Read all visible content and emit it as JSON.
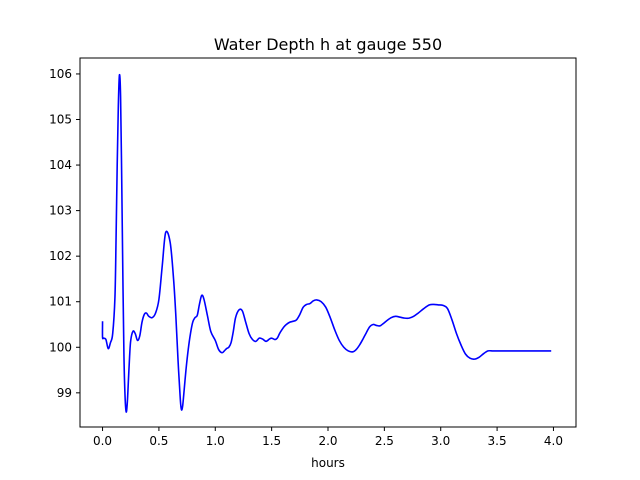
{
  "chart_data": {
    "type": "line",
    "title": "Water Depth h at gauge 550",
    "xlabel": "hours",
    "ylabel": "",
    "xlim": [
      -0.2,
      4.2
    ],
    "ylim": [
      98.25,
      106.35
    ],
    "grid": false,
    "x_ticks": [
      0.0,
      0.5,
      1.0,
      1.5,
      2.0,
      2.5,
      3.0,
      3.5,
      4.0
    ],
    "x_tick_labels": [
      "0.0",
      "0.5",
      "1.0",
      "1.5",
      "2.0",
      "2.5",
      "3.0",
      "3.5",
      "4.0"
    ],
    "y_ticks": [
      99,
      100,
      101,
      102,
      103,
      104,
      105,
      106
    ],
    "y_tick_labels": [
      "99",
      "100",
      "101",
      "102",
      "103",
      "104",
      "105",
      "106"
    ],
    "series": [
      {
        "color": "#0000ff",
        "x": [
          0.0,
          0.0,
          0.01,
          0.03,
          0.05,
          0.07,
          0.09,
          0.11,
          0.12,
          0.13,
          0.14,
          0.15,
          0.16,
          0.17,
          0.18,
          0.19,
          0.2,
          0.21,
          0.22,
          0.23,
          0.24,
          0.25,
          0.27,
          0.29,
          0.31,
          0.33,
          0.35,
          0.37,
          0.39,
          0.41,
          0.44,
          0.47,
          0.5,
          0.53,
          0.56,
          0.6,
          0.63,
          0.65,
          0.67,
          0.69,
          0.7,
          0.71,
          0.72,
          0.74,
          0.76,
          0.78,
          0.8,
          0.82,
          0.84,
          0.86,
          0.88,
          0.9,
          0.93,
          0.96,
          1.0,
          1.03,
          1.06,
          1.08,
          1.1,
          1.12,
          1.14,
          1.16,
          1.18,
          1.21,
          1.24,
          1.27,
          1.3,
          1.33,
          1.36,
          1.39,
          1.42,
          1.45,
          1.48,
          1.5,
          1.53,
          1.55,
          1.57,
          1.59,
          1.61,
          1.63,
          1.66,
          1.69,
          1.72,
          1.75,
          1.78,
          1.81,
          1.84,
          1.87,
          1.9,
          1.94,
          1.98,
          2.02,
          2.06,
          2.1,
          2.14,
          2.18,
          2.22,
          2.25,
          2.28,
          2.31,
          2.34,
          2.37,
          2.4,
          2.43,
          2.46,
          2.49,
          2.52,
          2.56,
          2.6,
          2.64,
          2.68,
          2.72,
          2.76,
          2.8,
          2.85,
          2.9,
          2.94,
          2.98,
          3.02,
          3.06,
          3.1,
          3.14,
          3.18,
          3.22,
          3.26,
          3.3,
          3.34,
          3.38,
          3.42,
          3.46,
          3.5,
          3.54,
          3.58,
          3.62,
          3.66,
          3.7,
          3.74,
          3.78,
          3.82,
          3.86,
          3.9,
          3.94,
          3.98
        ],
        "y": [
          100.57,
          100.22,
          100.2,
          100.17,
          99.97,
          100.1,
          100.3,
          101.1,
          102.4,
          104.0,
          105.3,
          105.98,
          105.5,
          103.7,
          101.6,
          99.8,
          98.9,
          98.58,
          98.8,
          99.3,
          99.8,
          100.15,
          100.35,
          100.3,
          100.15,
          100.25,
          100.55,
          100.72,
          100.75,
          100.68,
          100.65,
          100.75,
          101.05,
          101.8,
          102.52,
          102.3,
          101.5,
          100.7,
          99.7,
          98.85,
          98.63,
          98.7,
          98.95,
          99.5,
          99.95,
          100.3,
          100.55,
          100.65,
          100.7,
          100.95,
          101.14,
          101.05,
          100.7,
          100.35,
          100.15,
          99.95,
          99.88,
          99.92,
          99.97,
          100.0,
          100.1,
          100.35,
          100.65,
          100.82,
          100.8,
          100.55,
          100.3,
          100.17,
          100.13,
          100.2,
          100.18,
          100.13,
          100.18,
          100.2,
          100.17,
          100.2,
          100.3,
          100.38,
          100.45,
          100.5,
          100.55,
          100.57,
          100.6,
          100.72,
          100.88,
          100.94,
          100.96,
          101.02,
          101.04,
          101.0,
          100.88,
          100.65,
          100.38,
          100.15,
          100.0,
          99.92,
          99.9,
          99.95,
          100.05,
          100.18,
          100.32,
          100.45,
          100.5,
          100.48,
          100.47,
          100.52,
          100.58,
          100.65,
          100.68,
          100.66,
          100.64,
          100.64,
          100.68,
          100.75,
          100.85,
          100.93,
          100.94,
          100.93,
          100.92,
          100.85,
          100.6,
          100.3,
          100.05,
          99.85,
          99.76,
          99.74,
          99.78,
          99.86,
          99.92,
          99.92,
          99.92,
          99.92,
          99.92,
          99.92,
          99.92,
          99.92,
          99.92,
          99.92,
          99.92,
          99.92,
          99.92,
          99.92,
          99.92
        ]
      }
    ]
  }
}
